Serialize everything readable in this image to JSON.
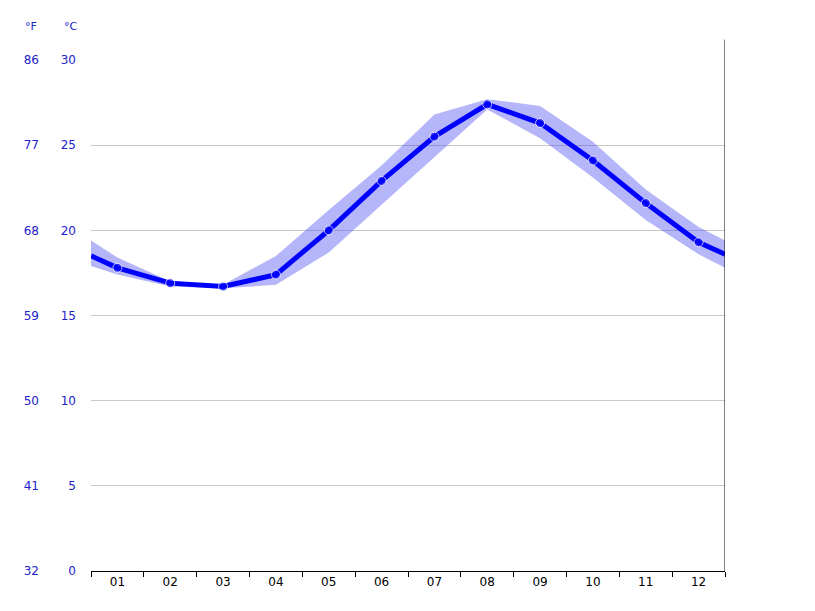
{
  "chart_data": {
    "type": "line",
    "y_label": "°C",
    "y2_label": "°F",
    "x": [
      0.5,
      1,
      2,
      3,
      4,
      5,
      6,
      7,
      8,
      9,
      10,
      11,
      12,
      12.5
    ],
    "xlim": [
      0.5,
      12.5
    ],
    "xticks": [
      {
        "value": 1,
        "label": "01"
      },
      {
        "value": 2,
        "label": "02"
      },
      {
        "value": 3,
        "label": "03"
      },
      {
        "value": 4,
        "label": "04"
      },
      {
        "value": 5,
        "label": "05"
      },
      {
        "value": 6,
        "label": "06"
      },
      {
        "value": 7,
        "label": "07"
      },
      {
        "value": 8,
        "label": "08"
      },
      {
        "value": 9,
        "label": "09"
      },
      {
        "value": 10,
        "label": "10"
      },
      {
        "value": 11,
        "label": "11"
      },
      {
        "value": 12,
        "label": "12"
      }
    ],
    "ylim": [
      0,
      30
    ],
    "yticks": [
      0,
      5,
      10,
      15,
      20,
      25,
      30
    ],
    "y2lim": [
      32,
      86
    ],
    "y2ticks": [
      32,
      41,
      50,
      59,
      68,
      77,
      86
    ],
    "grid": true,
    "series": [
      {
        "color": "#0000ff",
        "marker": "circle",
        "values": [
          18.5,
          17.8,
          16.9,
          16.7,
          17.4,
          20.0,
          22.9,
          25.5,
          27.4,
          26.3,
          24.1,
          21.6,
          19.3,
          18.6
        ],
        "low": [
          17.9,
          17.4,
          16.7,
          16.6,
          16.8,
          18.7,
          21.5,
          24.3,
          27.1,
          25.4,
          23.1,
          20.6,
          18.6,
          17.8
        ],
        "high": [
          19.4,
          18.4,
          17.0,
          16.8,
          18.5,
          21.2,
          23.8,
          26.8,
          27.7,
          27.3,
          25.2,
          22.4,
          20.2,
          19.4
        ]
      }
    ]
  }
}
